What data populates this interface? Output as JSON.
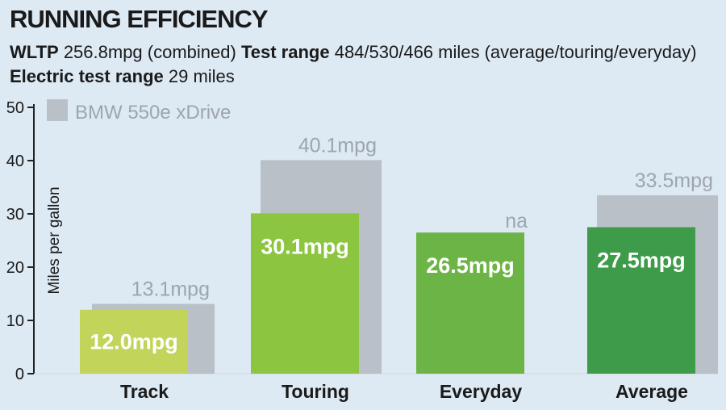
{
  "header": {
    "title": "RUNNING EFFICIENCY",
    "wltp_label": "WLTP",
    "wltp_value": "256.8mpg (combined)",
    "test_range_label": "Test range",
    "test_range_value": "484/530/466 miles (average/touring/everyday)",
    "electric_label": "Electric test range",
    "electric_value": "29 miles"
  },
  "colors": {
    "background": "#dde9f3",
    "reference_bar": "#b9c0c7",
    "reference_text": "#9ea5ac",
    "track": "#c2d45a",
    "touring": "#8cc53f",
    "everyday": "#6db446",
    "average": "#3e9b49"
  },
  "chart_data": {
    "type": "bar",
    "ylabel": "Miles per gallon",
    "ylim": [
      0,
      50
    ],
    "yticks": [
      0,
      10,
      20,
      30,
      40,
      50
    ],
    "legend": {
      "label": "BMW 550e xDrive",
      "placement": "top-left"
    },
    "categories": [
      "Track",
      "Touring",
      "Everyday",
      "Average"
    ],
    "series": [
      {
        "name": "BMW 550e xDrive",
        "values": [
          13.1,
          40.1,
          null,
          33.5
        ],
        "labels": [
          "13.1mpg",
          "40.1mpg",
          "na",
          "33.5mpg"
        ]
      },
      {
        "values": [
          12.0,
          30.1,
          26.5,
          27.5
        ],
        "labels": [
          "12.0mpg",
          "30.1mpg",
          "26.5mpg",
          "27.5mpg"
        ]
      }
    ]
  }
}
